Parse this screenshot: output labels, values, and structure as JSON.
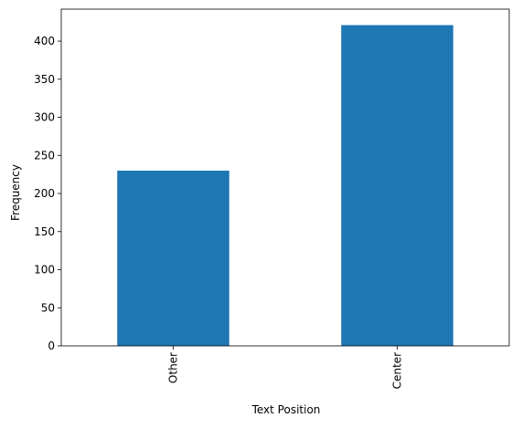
{
  "chart_data": {
    "type": "bar",
    "categories": [
      "Other",
      "Center"
    ],
    "values": [
      230,
      421
    ],
    "title": "",
    "xlabel": "Text Position",
    "ylabel": "Frequency",
    "ylim": [
      0,
      442
    ],
    "yticks": [
      0,
      50,
      100,
      150,
      200,
      250,
      300,
      350,
      400
    ],
    "grid": false,
    "legend": "none",
    "bar_color": "#1f77b4",
    "tick_label_rotation": "vertical"
  }
}
